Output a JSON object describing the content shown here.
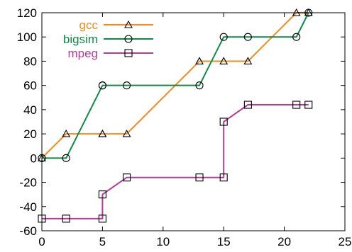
{
  "chart_data": {
    "type": "line",
    "title": "",
    "xlabel": "",
    "ylabel": "",
    "xlim": [
      0,
      25
    ],
    "ylim": [
      -60,
      120
    ],
    "xticks": [
      0,
      5,
      10,
      15,
      20,
      25
    ],
    "yticks": [
      -60,
      -40,
      -20,
      0,
      20,
      40,
      60,
      80,
      100,
      120
    ],
    "grid": false,
    "legend_position": "top-left",
    "series": [
      {
        "name": "gcc",
        "color": "#f28a1c",
        "marker": "triangle",
        "x": [
          0,
          2,
          5,
          5,
          7,
          13,
          15,
          17,
          21,
          22
        ],
        "y": [
          0,
          20,
          20,
          20,
          20,
          80,
          80,
          80,
          120,
          120
        ]
      },
      {
        "name": "bigsim",
        "color": "#0e8c45",
        "marker": "circle",
        "x": [
          0,
          2,
          5,
          5,
          7,
          13,
          15,
          17,
          21,
          22
        ],
        "y": [
          0,
          0,
          60,
          60,
          60,
          60,
          100,
          100,
          100,
          120
        ]
      },
      {
        "name": "mpeg",
        "color": "#b53c96",
        "marker": "square",
        "x": [
          0,
          2,
          5,
          5,
          7,
          13,
          15,
          15,
          17,
          21,
          22
        ],
        "y": [
          -50,
          -50,
          -50,
          -30,
          -16,
          -16,
          -16,
          30,
          44,
          44,
          44
        ]
      }
    ]
  }
}
